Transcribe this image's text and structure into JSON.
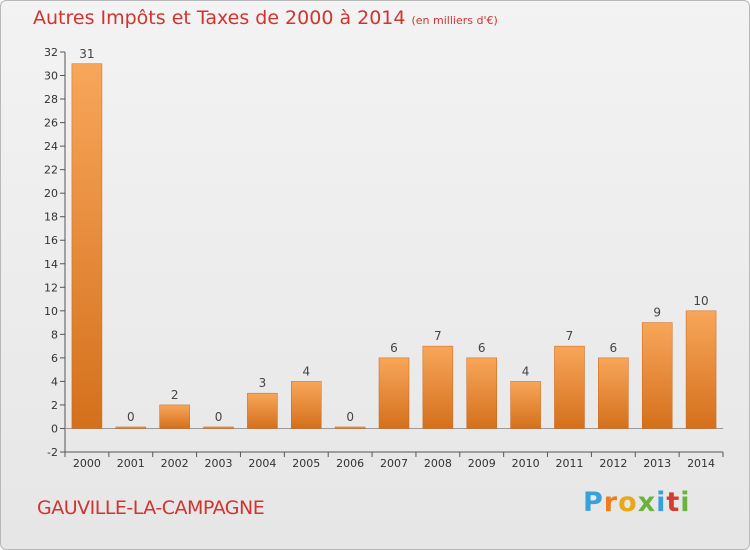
{
  "title": "Autres Impôts et Taxes de 2000 à 2014",
  "subtitle": "(en milliers d'€)",
  "commune": "GAUVILLE-LA-CAMPAGNE",
  "logo": {
    "letters": [
      "P",
      "r",
      "o",
      "x",
      "i",
      "t",
      "i"
    ],
    "colors": [
      "#3aa0da",
      "#f07c1e",
      "#e8a817",
      "#6ab43e",
      "#3aa0da",
      "#d63b2f",
      "#6ab43e"
    ]
  },
  "colors": {
    "bar_light": "#f8a65a",
    "bar_dark": "#d4701c",
    "title": "#d0342f"
  },
  "chart_data": {
    "type": "bar",
    "categories": [
      "2000",
      "2001",
      "2002",
      "2003",
      "2004",
      "2005",
      "2006",
      "2007",
      "2008",
      "2009",
      "2010",
      "2011",
      "2012",
      "2013",
      "2014"
    ],
    "values": [
      31,
      0,
      2,
      0,
      3,
      4,
      0,
      6,
      7,
      6,
      4,
      7,
      6,
      9,
      10
    ],
    "ylim": [
      -2,
      32
    ],
    "yticks": [
      -2,
      0,
      2,
      4,
      6,
      8,
      10,
      12,
      14,
      16,
      18,
      20,
      22,
      24,
      26,
      28,
      30,
      32
    ],
    "grid": false
  }
}
